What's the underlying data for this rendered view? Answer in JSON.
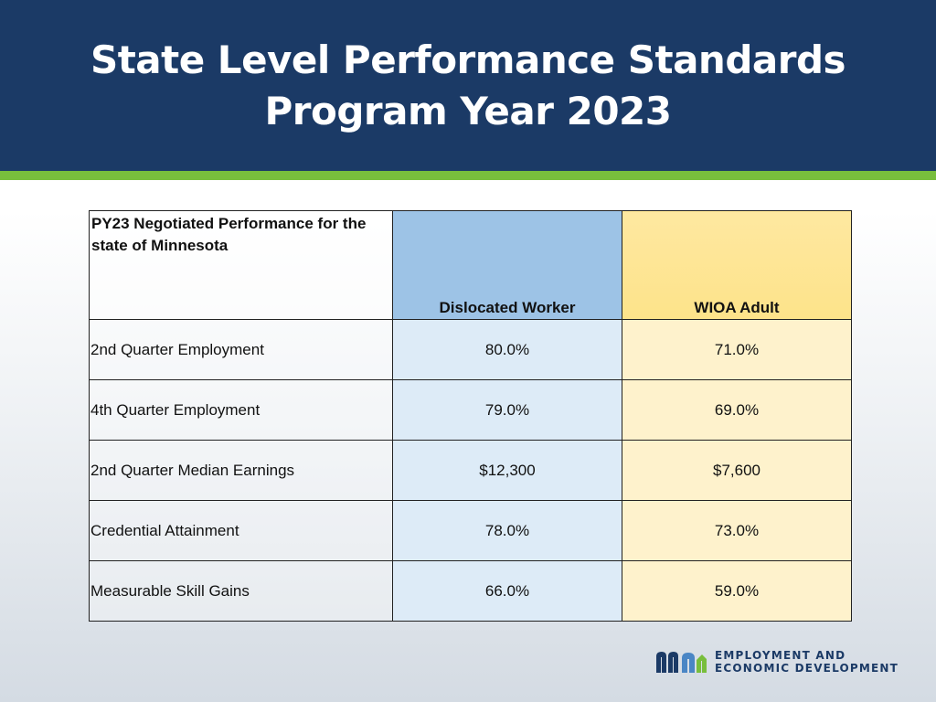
{
  "slide": {
    "title_line1": "State Level Performance Standards",
    "title_line2": "Program Year 2023"
  },
  "table": {
    "header": {
      "label": "PY23 Negotiated Performance for the state of Minnesota",
      "col1": "Dislocated Worker",
      "col2": "WIOA Adult"
    },
    "rows": [
      {
        "label": "2nd Quarter Employment",
        "dw": "80.0%",
        "wa": "71.0%"
      },
      {
        "label": "4th Quarter Employment",
        "dw": "79.0%",
        "wa": "69.0%"
      },
      {
        "label": "2nd Quarter Median Earnings",
        "dw": "$12,300",
        "wa": "$7,600"
      },
      {
        "label": "Credential Attainment",
        "dw": "78.0%",
        "wa": "73.0%"
      },
      {
        "label": "Measurable Skill Gains",
        "dw": "66.0%",
        "wa": "59.0%"
      }
    ]
  },
  "logo": {
    "line1": "EMPLOYMENT AND",
    "line2": "ECONOMIC DEVELOPMENT",
    "colors": {
      "navy": "#1b3a66",
      "green": "#78be3c",
      "blue": "#4a86c5"
    }
  },
  "colors": {
    "header_bg": "#1b3a66",
    "accent_bar": "#78be3c",
    "dislocated_header": "#9dc3e6",
    "wioa_header": "#fee58f"
  }
}
